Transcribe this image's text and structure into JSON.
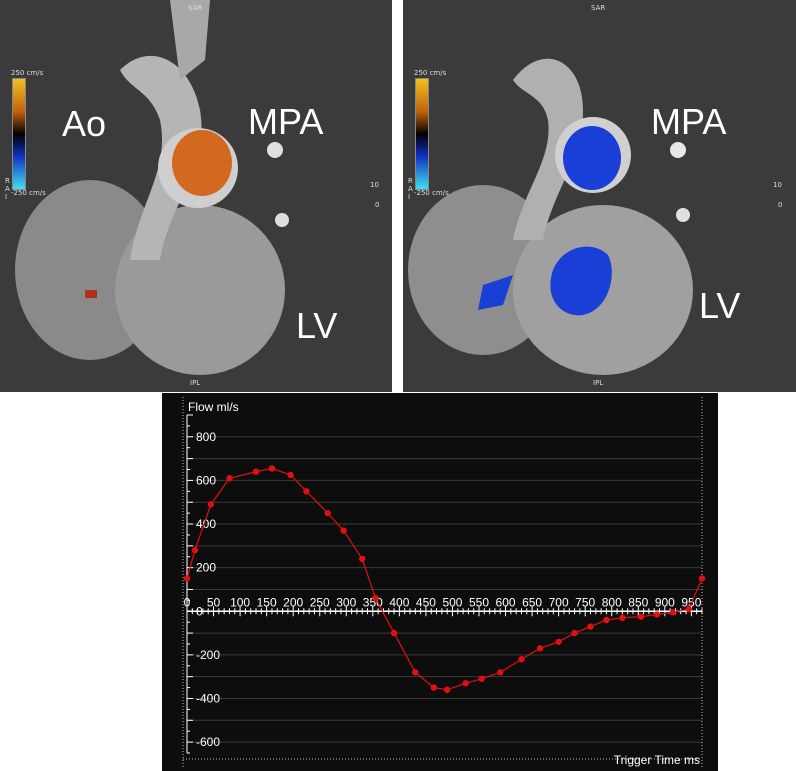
{
  "panels": {
    "left": {
      "labels": {
        "ao": "Ao",
        "mpa": "MPA",
        "lv": "LV"
      },
      "orientation": {
        "top": "SAR",
        "bottom": "IPL"
      },
      "colorbar": {
        "max": "250 cm/s",
        "min": "-250 cm/s"
      },
      "flow_color": "#d2691e"
    },
    "right": {
      "labels": {
        "mpa": "MPA",
        "lv": "LV"
      },
      "orientation": {
        "top": "SAR",
        "bottom": "IPL"
      },
      "colorbar": {
        "max": "250 cm/s",
        "min": "-250 cm/s"
      },
      "flow_color": "#1a3fd6"
    },
    "side_marks": {
      "a": "10",
      "b": "0"
    },
    "side_letters": [
      "R",
      "A",
      "I"
    ]
  },
  "chart_data": {
    "type": "line",
    "ylabel": "Flow ml/s",
    "xlabel": "Trigger Time ms",
    "xlim": [
      0,
      970
    ],
    "ylim": [
      -650,
      900
    ],
    "x_ticks": [
      0,
      50,
      100,
      150,
      200,
      250,
      300,
      350,
      400,
      450,
      500,
      550,
      600,
      650,
      700,
      750,
      800,
      850,
      900,
      950
    ],
    "y_ticks": [
      800,
      600,
      400,
      200,
      0,
      -200,
      -400,
      -600
    ],
    "y_tick_labels": [
      "800",
      "600",
      "400",
      "200",
      "0",
      "-200",
      "-400",
      "-600"
    ],
    "grid": true,
    "line_color": "#e01010",
    "series": [
      {
        "x": [
          0,
          15,
          45,
          80,
          130,
          160,
          195,
          225,
          265,
          295,
          330,
          355,
          390,
          430,
          465,
          490,
          525,
          555,
          590,
          630,
          665,
          700,
          730,
          760,
          790,
          820,
          855,
          885,
          915,
          945,
          970
        ],
        "values": [
          150,
          280,
          490,
          610,
          640,
          655,
          625,
          550,
          450,
          370,
          240,
          60,
          -100,
          -280,
          -350,
          -360,
          -330,
          -310,
          -280,
          -220,
          -170,
          -140,
          -100,
          -70,
          -40,
          -30,
          -25,
          -15,
          -5,
          10,
          150
        ]
      }
    ]
  }
}
